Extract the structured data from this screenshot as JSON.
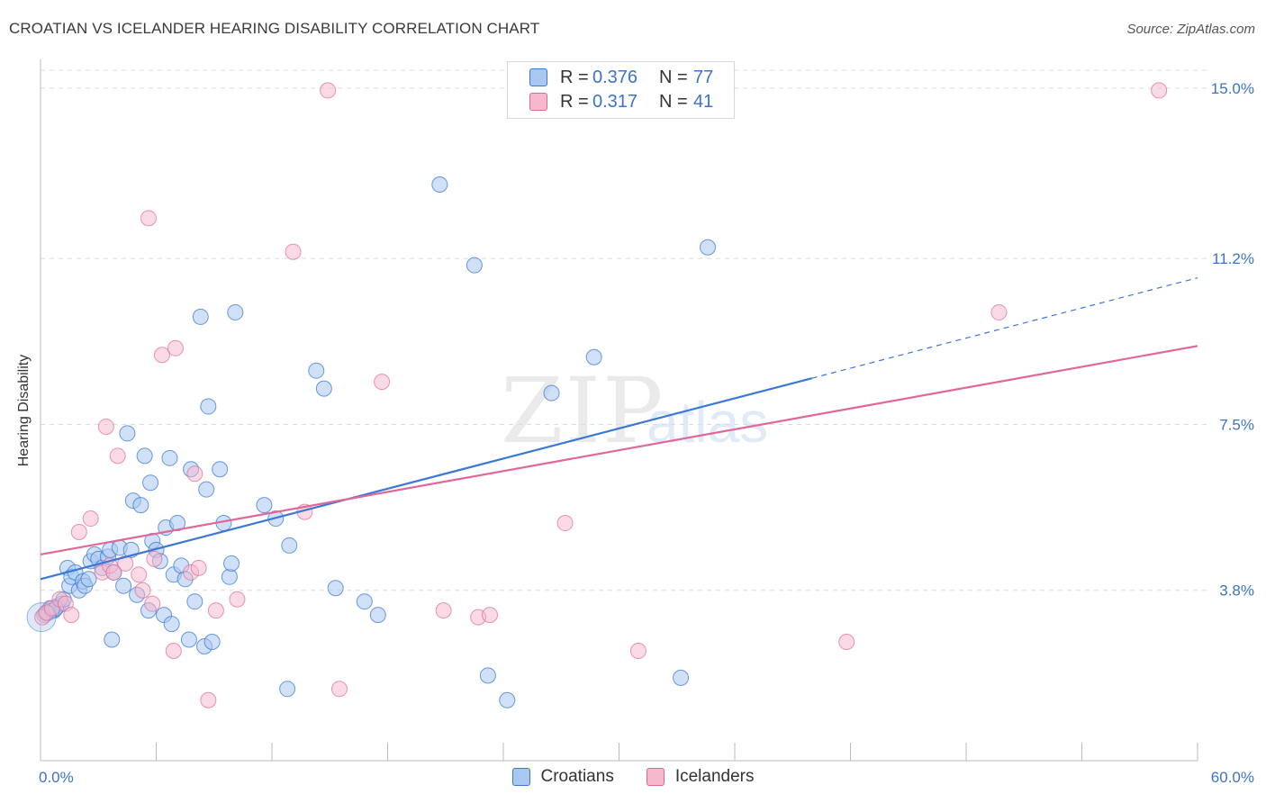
{
  "title": "CROATIAN VS ICELANDER HEARING DISABILITY CORRELATION CHART",
  "source": "Source: ZipAtlas.com",
  "watermark": {
    "zip": "ZIP",
    "atlas": "atlas"
  },
  "colors": {
    "croatians": "#3b78d4",
    "icelanders": "#e06898",
    "croatians_fill": "#a9c8f0",
    "icelanders_fill": "#f6b8cc",
    "tick_label": "#3b74c4"
  },
  "legend_top": [
    {
      "r_label": "R =",
      "r_value": "0.376",
      "n_label": "N =",
      "n_value": "77"
    },
    {
      "r_label": "R =",
      "r_value": "0.317",
      "n_label": "N =",
      "n_value": "41"
    }
  ],
  "legend_bottom": [
    {
      "label": "Croatians"
    },
    {
      "label": "Icelanders"
    }
  ],
  "chart_data": {
    "type": "scatter",
    "ylabel": "Hearing Disability",
    "xlabel": "",
    "xlim": [
      0,
      60
    ],
    "ylim": [
      0,
      15.4
    ],
    "x_tick_labels": [
      "0.0%",
      "60.0%"
    ],
    "y_ticks": [
      3.8,
      7.5,
      11.2,
      15.0
    ],
    "y_tick_labels": [
      "3.8%",
      "7.5%",
      "11.2%",
      "15.0%"
    ],
    "grid": "horizontal dashed",
    "series": [
      {
        "name": "Croatians",
        "trend": {
          "x0": 0,
          "y0": 4.05,
          "x1": 40,
          "y1": 8.53,
          "dashed_to_x": 60,
          "dashed_to_y": 10.77
        },
        "points": [
          [
            0.3,
            3.3
          ],
          [
            0.5,
            3.4
          ],
          [
            0.7,
            3.35
          ],
          [
            0.9,
            3.45
          ],
          [
            1.1,
            3.5
          ],
          [
            1.2,
            3.6
          ],
          [
            1.4,
            4.3
          ],
          [
            1.5,
            3.9
          ],
          [
            1.6,
            4.1
          ],
          [
            1.8,
            4.2
          ],
          [
            2.0,
            3.8
          ],
          [
            2.2,
            4.0
          ],
          [
            2.3,
            3.9
          ],
          [
            2.5,
            4.05
          ],
          [
            2.6,
            4.45
          ],
          [
            2.8,
            4.6
          ],
          [
            3.0,
            4.5
          ],
          [
            3.2,
            4.3
          ],
          [
            3.5,
            4.55
          ],
          [
            3.6,
            4.7
          ],
          [
            3.7,
            2.7
          ],
          [
            3.8,
            4.2
          ],
          [
            4.1,
            4.75
          ],
          [
            4.3,
            3.9
          ],
          [
            4.5,
            7.3
          ],
          [
            4.7,
            4.7
          ],
          [
            4.8,
            5.8
          ],
          [
            5.0,
            3.7
          ],
          [
            5.2,
            5.7
          ],
          [
            5.4,
            6.8
          ],
          [
            5.6,
            3.35
          ],
          [
            5.7,
            6.2
          ],
          [
            5.8,
            4.9
          ],
          [
            6.0,
            4.7
          ],
          [
            6.2,
            4.45
          ],
          [
            6.4,
            3.25
          ],
          [
            6.5,
            5.2
          ],
          [
            6.7,
            6.75
          ],
          [
            6.8,
            3.05
          ],
          [
            6.9,
            4.15
          ],
          [
            7.1,
            5.3
          ],
          [
            7.3,
            4.35
          ],
          [
            7.5,
            4.05
          ],
          [
            7.7,
            2.7
          ],
          [
            7.8,
            6.5
          ],
          [
            8.0,
            3.55
          ],
          [
            8.3,
            9.9
          ],
          [
            8.5,
            2.55
          ],
          [
            8.6,
            6.05
          ],
          [
            8.7,
            7.9
          ],
          [
            8.9,
            2.65
          ],
          [
            9.3,
            6.5
          ],
          [
            9.5,
            5.3
          ],
          [
            9.8,
            4.1
          ],
          [
            9.9,
            4.4
          ],
          [
            10.1,
            10.0
          ],
          [
            11.6,
            5.7
          ],
          [
            12.2,
            5.4
          ],
          [
            12.8,
            1.6
          ],
          [
            12.9,
            4.8
          ],
          [
            14.3,
            8.7
          ],
          [
            14.7,
            8.3
          ],
          [
            15.3,
            3.85
          ],
          [
            16.8,
            3.55
          ],
          [
            17.5,
            3.25
          ],
          [
            20.7,
            12.85
          ],
          [
            22.5,
            11.05
          ],
          [
            23.2,
            1.9
          ],
          [
            24.2,
            1.35
          ],
          [
            26.5,
            8.2
          ],
          [
            28.7,
            9.0
          ],
          [
            33.2,
            1.85
          ],
          [
            34.6,
            11.45
          ],
          [
            0.2,
            3.25
          ],
          [
            0.4,
            3.3
          ],
          [
            0.6,
            3.35
          ],
          [
            0.8,
            3.4
          ]
        ]
      },
      {
        "name": "Icelanders",
        "trend": {
          "x0": 0,
          "y0": 4.6,
          "x1": 60,
          "y1": 9.25
        },
        "points": [
          [
            0.1,
            3.2
          ],
          [
            0.3,
            3.3
          ],
          [
            0.6,
            3.4
          ],
          [
            1.0,
            3.6
          ],
          [
            1.3,
            3.5
          ],
          [
            1.6,
            3.25
          ],
          [
            2.0,
            5.1
          ],
          [
            2.6,
            5.4
          ],
          [
            3.2,
            4.2
          ],
          [
            3.4,
            7.45
          ],
          [
            3.6,
            4.35
          ],
          [
            3.8,
            4.2
          ],
          [
            4.0,
            6.8
          ],
          [
            4.4,
            4.4
          ],
          [
            5.1,
            4.15
          ],
          [
            5.3,
            3.8
          ],
          [
            5.6,
            12.1
          ],
          [
            5.8,
            3.5
          ],
          [
            5.9,
            4.5
          ],
          [
            6.3,
            9.05
          ],
          [
            6.9,
            2.45
          ],
          [
            7.0,
            9.2
          ],
          [
            7.8,
            4.2
          ],
          [
            8.0,
            6.4
          ],
          [
            8.2,
            4.3
          ],
          [
            8.7,
            1.35
          ],
          [
            9.1,
            3.35
          ],
          [
            10.2,
            3.6
          ],
          [
            13.1,
            11.35
          ],
          [
            13.7,
            5.55
          ],
          [
            14.9,
            14.95
          ],
          [
            15.5,
            1.6
          ],
          [
            17.7,
            8.45
          ],
          [
            20.9,
            3.35
          ],
          [
            22.7,
            3.2
          ],
          [
            23.3,
            3.25
          ],
          [
            27.2,
            5.3
          ],
          [
            31.0,
            2.45
          ],
          [
            41.8,
            2.65
          ],
          [
            49.7,
            10.0
          ],
          [
            58.0,
            14.95
          ]
        ]
      }
    ]
  }
}
